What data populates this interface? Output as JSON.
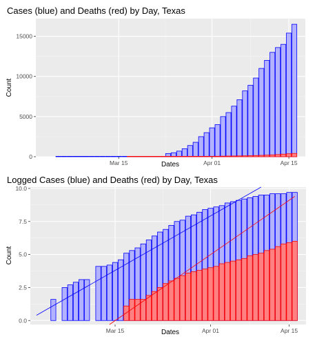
{
  "chart_data": [
    {
      "type": "bar",
      "title": "Cases (blue) and Deaths (red) by Day, Texas",
      "xlabel": "Dates",
      "ylabel": "Count",
      "x_ticks": [
        "Mar 15",
        "Apr 01",
        "Apr 15"
      ],
      "y_ticks": [
        "0",
        "5000",
        "10000",
        "15000"
      ],
      "ylim": [
        0,
        17200
      ],
      "grid": true,
      "legend": "none",
      "series": [
        {
          "color": "#0000ff",
          "fill": "#b2b2ff",
          "dates": [
            "2020-03-04",
            "2020-03-05",
            "2020-03-06",
            "2020-03-07",
            "2020-03-08",
            "2020-03-09",
            "2020-03-10",
            "2020-03-11",
            "2020-03-12",
            "2020-03-13",
            "2020-03-14",
            "2020-03-15",
            "2020-03-16",
            "2020-03-17",
            "2020-03-18",
            "2020-03-19",
            "2020-03-20",
            "2020-03-21",
            "2020-03-22",
            "2020-03-23",
            "2020-03-24",
            "2020-03-25",
            "2020-03-26",
            "2020-03-27",
            "2020-03-28",
            "2020-03-29",
            "2020-03-30",
            "2020-03-31",
            "2020-04-01",
            "2020-04-02",
            "2020-04-03",
            "2020-04-04",
            "2020-04-05",
            "2020-04-06",
            "2020-04-07",
            "2020-04-08",
            "2020-04-09",
            "2020-04-10",
            "2020-04-11",
            "2020-04-12",
            "2020-04-13",
            "2020-04-14",
            "2020-04-15",
            "2020-04-16"
          ],
          "values": [
            0,
            0,
            0,
            0,
            0,
            0,
            0,
            0,
            0,
            0,
            0,
            0,
            0,
            0,
            0,
            0,
            0,
            0,
            0,
            0,
            400,
            500,
            700,
            1000,
            1400,
            1800,
            2500,
            3000,
            3600,
            4000,
            5000,
            5500,
            6300,
            7100,
            8200,
            8900,
            9800,
            11000,
            12000,
            13000,
            13600,
            14000,
            15400,
            16500
          ]
        },
        {
          "color": "#ff0000",
          "fill": "#ff8080",
          "dates": [
            "2020-03-17",
            "2020-03-18",
            "2020-03-19",
            "2020-03-20",
            "2020-03-21",
            "2020-03-22",
            "2020-03-23",
            "2020-03-24",
            "2020-03-25",
            "2020-03-26",
            "2020-03-27",
            "2020-03-28",
            "2020-03-29",
            "2020-03-30",
            "2020-03-31",
            "2020-04-01",
            "2020-04-02",
            "2020-04-03",
            "2020-04-04",
            "2020-04-05",
            "2020-04-06",
            "2020-04-07",
            "2020-04-08",
            "2020-04-09",
            "2020-04-10",
            "2020-04-11",
            "2020-04-12",
            "2020-04-13",
            "2020-04-14",
            "2020-04-15",
            "2020-04-16"
          ],
          "values": [
            3,
            5,
            5,
            5,
            7,
            9,
            12,
            16,
            20,
            25,
            30,
            35,
            40,
            45,
            50,
            55,
            60,
            70,
            80,
            90,
            100,
            110,
            130,
            150,
            170,
            200,
            230,
            270,
            320,
            370,
            410
          ]
        }
      ]
    },
    {
      "type": "bar",
      "title": "Logged Cases (blue) and Deaths (red) by Day, Texas",
      "xlabel": "Dates",
      "ylabel": "Count",
      "x_ticks": [
        "Mar 15",
        "Apr 01",
        "Apr 15"
      ],
      "y_ticks": [
        "0.0",
        "2.5",
        "5.0",
        "7.5",
        "10.0"
      ],
      "ylim": [
        -0.3,
        10.1
      ],
      "grid": true,
      "legend": "none",
      "series": [
        {
          "color": "#0000ff",
          "fill": "#b2b2ff",
          "dates": [
            "2020-03-04",
            "2020-03-06",
            "2020-03-07",
            "2020-03-08",
            "2020-03-09",
            "2020-03-10",
            "2020-03-12",
            "2020-03-13",
            "2020-03-14",
            "2020-03-15",
            "2020-03-16",
            "2020-03-17",
            "2020-03-18",
            "2020-03-19",
            "2020-03-20",
            "2020-03-21",
            "2020-03-22",
            "2020-03-23",
            "2020-03-24",
            "2020-03-25",
            "2020-03-26",
            "2020-03-27",
            "2020-03-28",
            "2020-03-29",
            "2020-03-30",
            "2020-03-31",
            "2020-04-01",
            "2020-04-02",
            "2020-04-03",
            "2020-04-04",
            "2020-04-05",
            "2020-04-06",
            "2020-04-07",
            "2020-04-08",
            "2020-04-09",
            "2020-04-10",
            "2020-04-11",
            "2020-04-12",
            "2020-04-13",
            "2020-04-14",
            "2020-04-15",
            "2020-04-16"
          ],
          "values": [
            1.6,
            2.5,
            2.7,
            2.9,
            3.1,
            3.1,
            4.1,
            4.1,
            4.2,
            4.4,
            4.6,
            5.1,
            5.3,
            5.5,
            5.8,
            6.1,
            6.4,
            6.7,
            6.9,
            7.2,
            7.5,
            7.6,
            7.9,
            8.0,
            8.2,
            8.4,
            8.5,
            8.6,
            8.7,
            8.9,
            9.0,
            9.1,
            9.2,
            9.3,
            9.4,
            9.5,
            9.5,
            9.6,
            9.6,
            9.6,
            9.7,
            9.7
          ]
        },
        {
          "color": "#ff0000",
          "fill": "#ff8080",
          "dates": [
            "2020-03-17",
            "2020-03-18",
            "2020-03-19",
            "2020-03-20",
            "2020-03-21",
            "2020-03-22",
            "2020-03-23",
            "2020-03-24",
            "2020-03-25",
            "2020-03-26",
            "2020-03-27",
            "2020-03-28",
            "2020-03-29",
            "2020-03-30",
            "2020-03-31",
            "2020-04-01",
            "2020-04-02",
            "2020-04-03",
            "2020-04-04",
            "2020-04-05",
            "2020-04-06",
            "2020-04-07",
            "2020-04-08",
            "2020-04-09",
            "2020-04-10",
            "2020-04-11",
            "2020-04-12",
            "2020-04-13",
            "2020-04-14",
            "2020-04-15",
            "2020-04-16"
          ],
          "values": [
            1.1,
            1.6,
            1.6,
            1.6,
            1.9,
            2.2,
            2.5,
            2.8,
            3.0,
            3.2,
            3.4,
            3.6,
            3.7,
            3.8,
            3.9,
            4.0,
            4.1,
            4.3,
            4.4,
            4.5,
            4.6,
            4.7,
            4.9,
            5.0,
            5.1,
            5.3,
            5.4,
            5.6,
            5.8,
            5.9,
            6.0
          ]
        }
      ],
      "trend_lines": [
        {
          "color": "#0000ff",
          "points": [
            [
              "2020-03-01",
              0.4
            ],
            [
              "2020-04-10",
              10.1
            ]
          ]
        },
        {
          "color": "#ff0000",
          "points": [
            [
              "2020-03-14",
              -0.3
            ],
            [
              "2020-04-16",
              9.4
            ]
          ]
        }
      ]
    }
  ]
}
